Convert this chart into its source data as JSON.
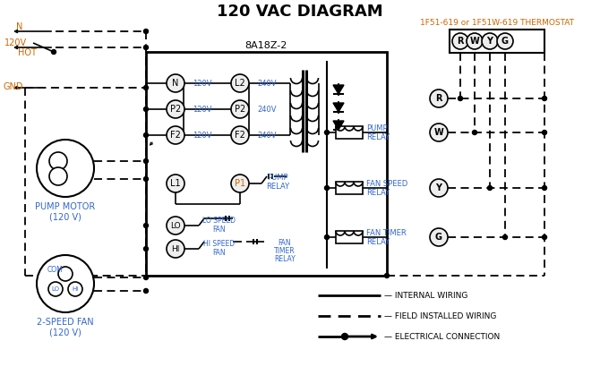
{
  "title": "120 VAC DIAGRAM",
  "bg_color": "#ffffff",
  "orange_color": "#cc6600",
  "blue_color": "#3366cc",
  "thermostat_label": "1F51-619 or 1F51W-619 THERMOSTAT",
  "control_box_label": "8A18Z-2",
  "terminal_labels_left": [
    "N",
    "P2",
    "F2"
  ],
  "terminal_labels_right": [
    "L2",
    "P2",
    "F2"
  ],
  "terminal_voltages_left": [
    "120V",
    "120V",
    "120V"
  ],
  "terminal_voltages_right": [
    "240V",
    "240V",
    "240V"
  ],
  "thermostat_terminals": [
    "R",
    "W",
    "Y",
    "G"
  ],
  "figsize": [
    6.7,
    4.19
  ],
  "dpi": 100
}
